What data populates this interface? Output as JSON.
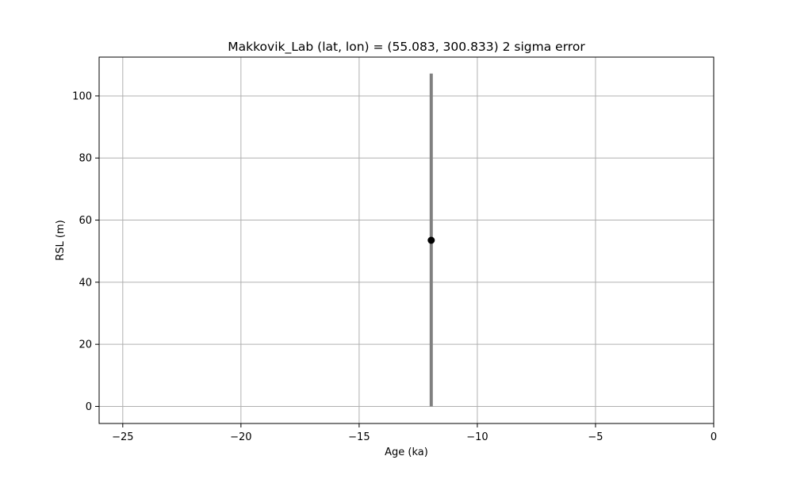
{
  "chart_data": {
    "type": "scatter",
    "title": "Makkovik_Lab (lat, lon) = (55.083, 300.833)  2 sigma error",
    "xlabel": "Age (ka)",
    "ylabel": "RSL (m)",
    "xlim": [
      -26,
      0
    ],
    "ylim": [
      -5.5,
      112.5
    ],
    "xticks": [
      -25,
      -20,
      -15,
      -10,
      -5,
      0
    ],
    "xtick_labels": [
      "−25",
      "−20",
      "−15",
      "−10",
      "−5",
      "0"
    ],
    "yticks": [
      0,
      20,
      40,
      60,
      80,
      100
    ],
    "ytick_labels": [
      "0",
      "20",
      "40",
      "60",
      "80",
      "100"
    ],
    "grid": true,
    "points": [
      {
        "x": -11.95,
        "y": 53.5,
        "error_low": 0,
        "error_high": 107.2
      }
    ],
    "colors": {
      "point": "#000000",
      "errorbar": "#808080",
      "grid": "#b0b0b0"
    }
  }
}
